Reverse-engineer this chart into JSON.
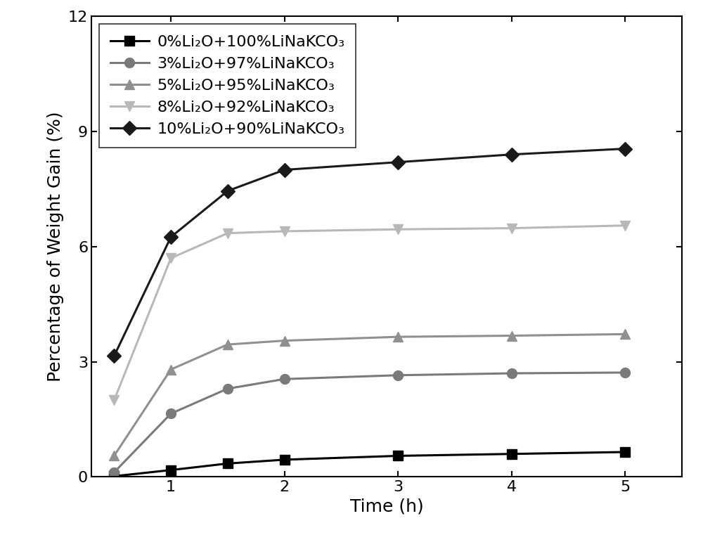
{
  "series": [
    {
      "label": "0%Li₂O+100%LiNaKCO₃",
      "color": "#000000",
      "marker": "s",
      "markersize": 10,
      "linewidth": 2.2,
      "linestyle": "-",
      "x": [
        0.5,
        1.0,
        1.5,
        2.0,
        3.0,
        4.0,
        5.0
      ],
      "y": [
        0.02,
        0.18,
        0.35,
        0.45,
        0.55,
        0.6,
        0.65
      ]
    },
    {
      "label": "3%Li₂O+97%LiNaKCO₃",
      "color": "#7a7a7a",
      "marker": "o",
      "markersize": 10,
      "linewidth": 2.2,
      "linestyle": "-",
      "x": [
        0.5,
        1.0,
        1.5,
        2.0,
        3.0,
        4.0,
        5.0
      ],
      "y": [
        0.12,
        1.65,
        2.3,
        2.55,
        2.65,
        2.7,
        2.72
      ]
    },
    {
      "label": "5%Li₂O+95%LiNaKCO₃",
      "color": "#909090",
      "marker": "^",
      "markersize": 10,
      "linewidth": 2.2,
      "linestyle": "-",
      "x": [
        0.5,
        1.0,
        1.5,
        2.0,
        3.0,
        4.0,
        5.0
      ],
      "y": [
        0.55,
        2.8,
        3.45,
        3.55,
        3.65,
        3.68,
        3.72
      ]
    },
    {
      "label": "8%Li₂O+92%LiNaKCO₃",
      "color": "#b8b8b8",
      "marker": "v",
      "markersize": 10,
      "linewidth": 2.2,
      "linestyle": "-",
      "x": [
        0.5,
        1.0,
        1.5,
        2.0,
        3.0,
        4.0,
        5.0
      ],
      "y": [
        2.0,
        5.7,
        6.35,
        6.4,
        6.45,
        6.48,
        6.55
      ]
    },
    {
      "label": "10%Li₂O+90%LiNaKCO₃",
      "color": "#1a1a1a",
      "marker": "D",
      "markersize": 10,
      "linewidth": 2.2,
      "linestyle": "-",
      "x": [
        0.5,
        1.0,
        1.5,
        2.0,
        3.0,
        4.0,
        5.0
      ],
      "y": [
        3.15,
        6.25,
        7.45,
        8.0,
        8.2,
        8.4,
        8.55
      ]
    }
  ],
  "xlabel": "Time (h)",
  "ylabel": "Percentage of Weight Gain (%)",
  "xlim": [
    0.3,
    5.5
  ],
  "ylim": [
    0,
    12
  ],
  "yticks": [
    0,
    3,
    6,
    9,
    12
  ],
  "xticks": [
    1,
    2,
    3,
    4,
    5
  ],
  "xtick_labels": [
    "1",
    "2",
    "3",
    "4",
    "5"
  ],
  "legend_loc": "upper left",
  "fontsize_axis_label": 18,
  "fontsize_tick": 16,
  "fontsize_legend": 16
}
